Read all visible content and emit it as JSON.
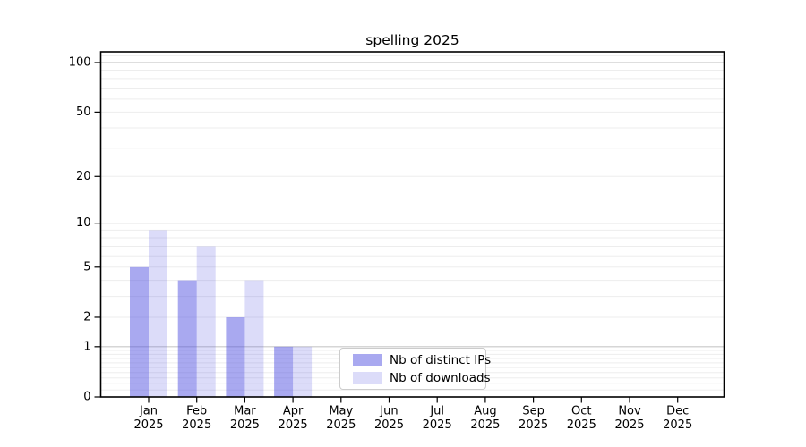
{
  "chart_data": {
    "type": "bar",
    "title": "spelling 2025",
    "categories": [
      "Jan",
      "Feb",
      "Mar",
      "Apr",
      "May",
      "Jun",
      "Jul",
      "Aug",
      "Sep",
      "Oct",
      "Nov",
      "Dec"
    ],
    "x_tick_year": "2025",
    "series": [
      {
        "name": "Nb of distinct IPs",
        "values": [
          5,
          4,
          2,
          1,
          0,
          0,
          0,
          0,
          0,
          0,
          0,
          0
        ],
        "base_color": "#5050e0",
        "opacity": 0.49,
        "blended_hex": "#a9a9f0"
      },
      {
        "name": "Nb of downloads",
        "values": [
          9,
          7,
          4,
          1,
          0,
          0,
          0,
          0,
          0,
          0,
          0,
          0
        ],
        "base_color": "#5050e0",
        "opacity": 0.2,
        "blended_hex": "#dcdcf8"
      }
    ],
    "y_scale": "log1p",
    "y_ticks": [
      0,
      1,
      2,
      5,
      10,
      20,
      50,
      100
    ],
    "y_range": [
      0,
      116
    ],
    "grid": {
      "major_values": [
        1,
        10,
        100
      ],
      "minor_values": [
        0.1,
        0.2,
        0.3,
        0.4,
        0.5,
        0.6,
        0.7,
        0.8,
        0.9,
        2,
        3,
        4,
        5,
        6,
        7,
        8,
        9,
        20,
        30,
        40,
        50,
        60,
        70,
        80,
        90,
        110
      ],
      "major_color": "#c9c9c9",
      "minor_color": "#ededed"
    },
    "axis_color": "#000000",
    "legend_position": "inside-bottom-center"
  }
}
